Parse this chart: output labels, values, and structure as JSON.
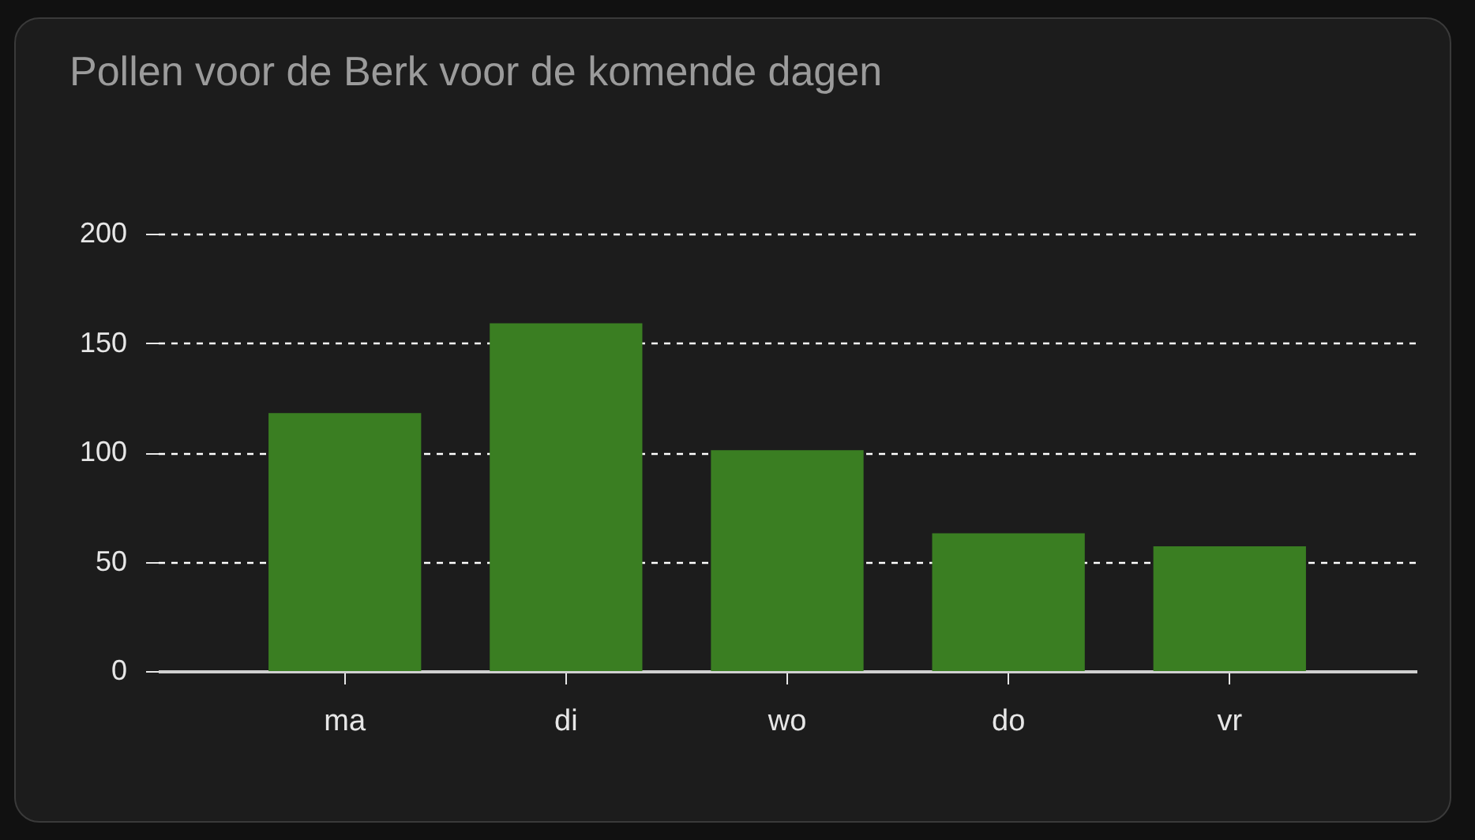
{
  "chart_data": {
    "type": "bar",
    "title": "Pollen voor de Berk voor de komende dagen",
    "categories": [
      "ma",
      "di",
      "wo",
      "do",
      "vr"
    ],
    "values": [
      118,
      159,
      101,
      63,
      57
    ],
    "color": "#3a7e22",
    "ylim": [
      0,
      200
    ],
    "yticks": [
      0,
      50,
      100,
      150,
      200
    ],
    "grid": "y"
  }
}
